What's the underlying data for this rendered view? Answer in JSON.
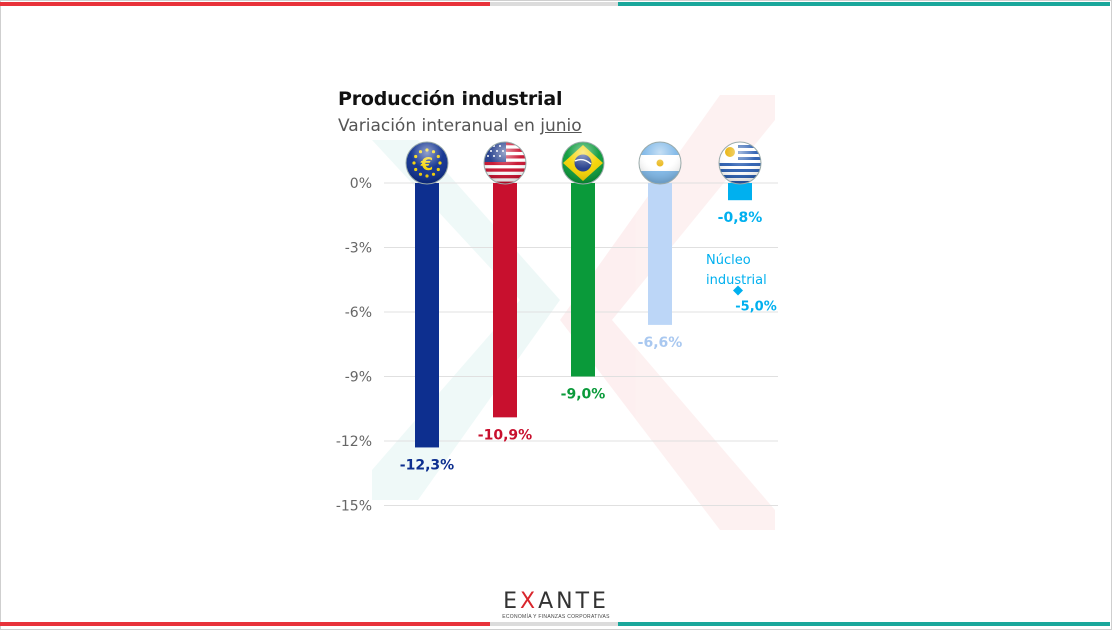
{
  "chart_data": {
    "type": "bar",
    "title": "Producción industrial",
    "subtitle_prefix": "Variación interanual en ",
    "subtitle_underlined": "junio",
    "categories": [
      "euro-area-flag-icon",
      "usa-flag-icon",
      "brazil-flag-icon",
      "argentina-flag-icon",
      "uruguay-flag-icon"
    ],
    "values": [
      -12.3,
      -10.9,
      -9.0,
      -6.6,
      -0.8
    ],
    "value_labels": [
      "-12,3%",
      "-10,9%",
      "-9,0%",
      "-6,6%",
      "-0,8%"
    ],
    "colors": [
      "#0d2f8f",
      "#c8102e",
      "#0a9a3a",
      "#bcd6f7",
      "#00b0ef"
    ],
    "ylim": [
      -15,
      0
    ],
    "yticks": [
      0,
      -3,
      -6,
      -9,
      -12,
      -15
    ],
    "ytick_labels": [
      "0%",
      "-3%",
      "-6%",
      "-9%",
      "-12%",
      "-15%"
    ],
    "grid": true,
    "extra_point": {
      "label_line1": "Núcleo",
      "label_line2": "industrial",
      "value": -5.0,
      "value_label": "-5,0%",
      "color": "#00b0ef"
    }
  },
  "logo": {
    "word_left": "E",
    "word_x": "X",
    "word_right": "ANTE",
    "tagline": "ECONOMÍA Y FINANZAS CORPORATIVAS"
  },
  "colors": {
    "red": "#e8323a",
    "teal": "#1aa79b",
    "gray": "#dcdcdc"
  }
}
